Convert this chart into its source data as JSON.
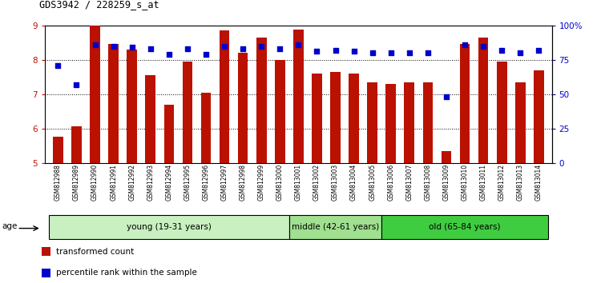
{
  "title": "GDS3942 / 228259_s_at",
  "samples": [
    "GSM812988",
    "GSM812989",
    "GSM812990",
    "GSM812991",
    "GSM812992",
    "GSM812993",
    "GSM812994",
    "GSM812995",
    "GSM812996",
    "GSM812997",
    "GSM812998",
    "GSM812999",
    "GSM813000",
    "GSM813001",
    "GSM813002",
    "GSM813003",
    "GSM813004",
    "GSM813005",
    "GSM813006",
    "GSM813007",
    "GSM813008",
    "GSM813009",
    "GSM813010",
    "GSM813011",
    "GSM813012",
    "GSM813013",
    "GSM813014"
  ],
  "bar_values": [
    5.75,
    6.05,
    9.0,
    8.45,
    8.3,
    7.55,
    6.7,
    7.95,
    7.05,
    8.85,
    8.2,
    8.65,
    8.0,
    8.87,
    7.6,
    7.65,
    7.6,
    7.35,
    7.3,
    7.35,
    7.35,
    5.35,
    8.45,
    8.65,
    7.95,
    7.35,
    7.7
  ],
  "percentile_values": [
    71,
    57,
    86,
    85,
    84,
    83,
    79,
    83,
    79,
    85,
    83,
    85,
    83,
    86,
    81,
    82,
    81,
    80,
    80,
    80,
    80,
    48,
    86,
    85,
    82,
    80,
    82
  ],
  "groups": [
    {
      "label": "young (19-31 years)",
      "start": 0,
      "end": 13,
      "color": "#c8f0c0"
    },
    {
      "label": "middle (42-61 years)",
      "start": 13,
      "end": 18,
      "color": "#a0e090"
    },
    {
      "label": "old (65-84 years)",
      "start": 18,
      "end": 27,
      "color": "#40cc40"
    }
  ],
  "ylim_left": [
    5,
    9
  ],
  "ylim_right": [
    0,
    100
  ],
  "yticks_left": [
    5,
    6,
    7,
    8,
    9
  ],
  "yticks_right": [
    0,
    25,
    50,
    75,
    100
  ],
  "ytick_labels_right": [
    "0",
    "25",
    "50",
    "75",
    "100%"
  ],
  "bar_color": "#bb1100",
  "dot_color": "#0000cc",
  "bar_width": 0.55,
  "legend_items": [
    {
      "label": "transformed count",
      "color": "#bb1100"
    },
    {
      "label": "percentile rank within the sample",
      "color": "#0000cc"
    }
  ]
}
